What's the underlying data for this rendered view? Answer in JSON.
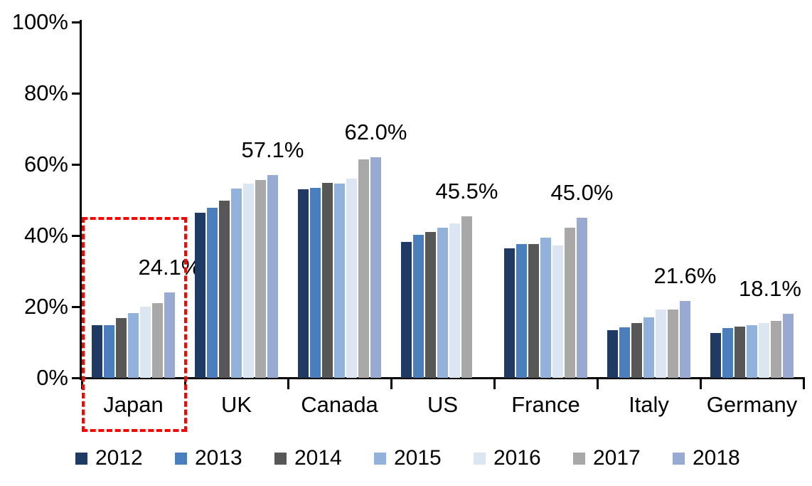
{
  "chart_data": {
    "type": "bar",
    "title": "",
    "categories": [
      "Japan",
      "UK",
      "Canada",
      "US",
      "France",
      "Italy",
      "Germany"
    ],
    "series": [
      {
        "name": "2012",
        "color": "#1F3B63",
        "values": [
          14.8,
          46.4,
          53.0,
          38.3,
          36.5,
          13.4,
          12.6
        ]
      },
      {
        "name": "2013",
        "color": "#4B7EBC",
        "values": [
          14.9,
          47.9,
          53.4,
          40.2,
          37.7,
          14.2,
          14.0
        ]
      },
      {
        "name": "2014",
        "color": "#575757",
        "values": [
          16.8,
          49.9,
          54.8,
          41.0,
          37.6,
          15.4,
          14.5
        ]
      },
      {
        "name": "2015",
        "color": "#92B2DC",
        "values": [
          18.3,
          53.3,
          54.6,
          42.3,
          39.4,
          17.0,
          14.9
        ]
      },
      {
        "name": "2016",
        "color": "#DCE6F2",
        "values": [
          20.1,
          54.6,
          56.0,
          43.5,
          37.3,
          19.2,
          15.4
        ]
      },
      {
        "name": "2017",
        "color": "#A8A8A8",
        "values": [
          21.0,
          55.6,
          61.5,
          45.5,
          42.3,
          19.3,
          16.1
        ]
      },
      {
        "name": "2018",
        "color": "#98A9D2",
        "values": [
          24.1,
          57.1,
          62.0,
          null,
          45.0,
          21.6,
          18.1
        ]
      }
    ],
    "data_labels": [
      "24.1%",
      "57.1%",
      "62.0%",
      "45.5%",
      "45.0%",
      "21.6%",
      "18.1%"
    ],
    "xlabel": "",
    "ylabel": "",
    "ylim": [
      0,
      100
    ],
    "yticks": [
      "0%",
      "20%",
      "40%",
      "60%",
      "80%",
      "100%"
    ],
    "grid": false,
    "legend_position": "bottom",
    "legend_entries": [
      "2012",
      "2013",
      "2014",
      "2015",
      "2016",
      "2017",
      "2018"
    ],
    "annotation": {
      "type": "dashed-box",
      "target_category": "Japan",
      "color": "#FF0000"
    },
    "axis_color": "#000000",
    "background_color": "#FFFFFF"
  }
}
